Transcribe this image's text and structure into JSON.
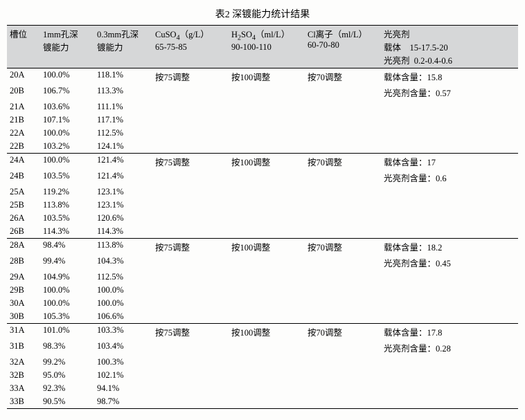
{
  "title": "表2  深镀能力统计结果",
  "header": {
    "slot": "槽位",
    "col_1mm_l1": "1mm孔深",
    "col_1mm_l2": "镀能力",
    "col_03mm_l1": "0.3mm孔深",
    "col_03mm_l2": "镀能力",
    "cuso4_l1": "CuSO",
    "cuso4_unit": "（g/L）",
    "cuso4_l2": "65-75-85",
    "h2so4_l1": "H",
    "h2so4_mid": "SO",
    "h2so4_unit": "（ml/L）",
    "h2so4_l2": "90-100-110",
    "cl_l1": "Cl离子（ml/L）",
    "cl_l2": "60-70-80",
    "bright_l1": "光亮剂",
    "bright_l2a": "载体",
    "bright_l2a_val": "15-17.5-20",
    "bright_l3a": "光亮剂",
    "bright_l3a_val": "0.2-0.4-0.6"
  },
  "groups": [
    {
      "cuso4": "按75调整",
      "h2so4": "按100调整",
      "cl": "按70调整",
      "bright1": "载体含量：15.8",
      "bright2": "光亮剂含量：0.57",
      "rows": [
        {
          "slot": "20A",
          "v1": "100.0%",
          "v2": "118.1%"
        },
        {
          "slot": "20B",
          "v1": "106.7%",
          "v2": "113.3%"
        },
        {
          "slot": "21A",
          "v1": "103.6%",
          "v2": "111.1%"
        },
        {
          "slot": "21B",
          "v1": "107.1%",
          "v2": "117.1%"
        },
        {
          "slot": "22A",
          "v1": "100.0%",
          "v2": "112.5%"
        },
        {
          "slot": "22B",
          "v1": "103.2%",
          "v2": "124.1%"
        }
      ]
    },
    {
      "cuso4": "按75调整",
      "h2so4": "按100调整",
      "cl": "按70调整",
      "bright1": "载体含量：17",
      "bright2": "光亮剂含量：0.6",
      "rows": [
        {
          "slot": "24A",
          "v1": "100.0%",
          "v2": "121.4%"
        },
        {
          "slot": "24B",
          "v1": "103.5%",
          "v2": "121.4%"
        },
        {
          "slot": "25A",
          "v1": "119.2%",
          "v2": "123.1%"
        },
        {
          "slot": "25B",
          "v1": "113.8%",
          "v2": "123.1%"
        },
        {
          "slot": "26A",
          "v1": "103.5%",
          "v2": "120.6%"
        },
        {
          "slot": "26B",
          "v1": "114.3%",
          "v2": "114.3%"
        }
      ]
    },
    {
      "cuso4": "按75调整",
      "h2so4": "按100调整",
      "cl": "按70调整",
      "bright1": "载体含量：18.2",
      "bright2": "光亮剂含量：0.45",
      "rows": [
        {
          "slot": "28A",
          "v1": "98.4%",
          "v2": "113.8%"
        },
        {
          "slot": "28B",
          "v1": "99.4%",
          "v2": "104.3%"
        },
        {
          "slot": "29A",
          "v1": "104.9%",
          "v2": "112.5%"
        },
        {
          "slot": "29B",
          "v1": "100.0%",
          "v2": "100.0%"
        },
        {
          "slot": "30A",
          "v1": "100.0%",
          "v2": "100.0%"
        },
        {
          "slot": "30B",
          "v1": "105.3%",
          "v2": "106.6%"
        }
      ]
    },
    {
      "cuso4": "按75调整",
      "h2so4": "按100调整",
      "cl": "按70调整",
      "bright1": "载体含量：17.8",
      "bright2": "光亮剂含量：0.28",
      "rows": [
        {
          "slot": "31A",
          "v1": "101.0%",
          "v2": "103.3%"
        },
        {
          "slot": "31B",
          "v1": "98.3%",
          "v2": "103.4%"
        },
        {
          "slot": "32A",
          "v1": "99.2%",
          "v2": "100.3%"
        },
        {
          "slot": "32B",
          "v1": "95.0%",
          "v2": "102.1%"
        },
        {
          "slot": "33A",
          "v1": "92.3%",
          "v2": "94.1%"
        },
        {
          "slot": "33B",
          "v1": "90.5%",
          "v2": "98.7%"
        }
      ]
    }
  ]
}
